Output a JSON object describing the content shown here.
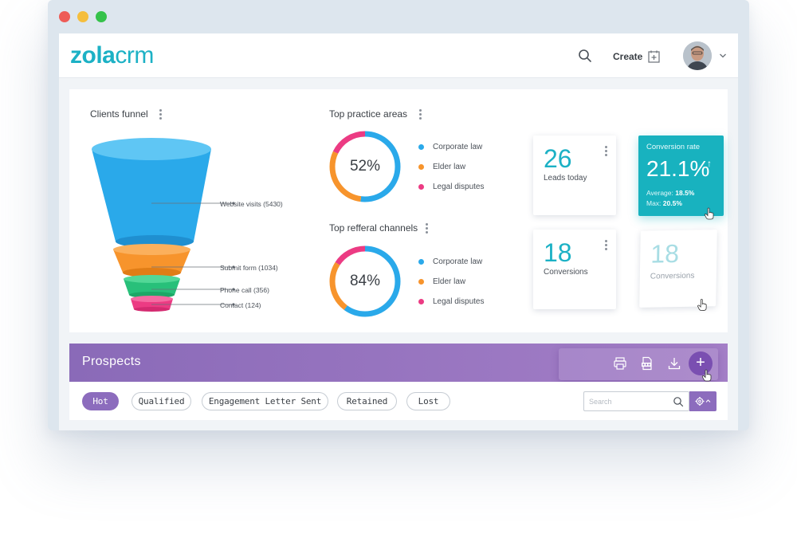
{
  "app": {
    "logo_bold": "zola",
    "logo_light": "crm",
    "create_label": "Create"
  },
  "funnel": {
    "title": "Clients funnel",
    "stages": [
      {
        "label": "Website visits (5430)",
        "value": 5430,
        "color": "#2aa9ea"
      },
      {
        "label": "Submit form (1034)",
        "value": 1034,
        "color": "#f7942c"
      },
      {
        "label": "Phone call (356)",
        "value": 356,
        "color": "#28c07a"
      },
      {
        "label": "Contact (124)",
        "value": 124,
        "color": "#ec3b83"
      }
    ]
  },
  "practice_areas": {
    "title": "Top practice areas",
    "percent_label": "52%",
    "segments": [
      {
        "label": "Corporate law",
        "color": "#2aa9ea",
        "fraction": 0.52
      },
      {
        "label": "Elder law",
        "color": "#f7942c",
        "fraction": 0.3
      },
      {
        "label": "Legal disputes",
        "color": "#ec3b83",
        "fraction": 0.18
      }
    ]
  },
  "referral_channels": {
    "title": "Top refferal channels",
    "percent_label": "84%",
    "segments": [
      {
        "label": "Corporate law",
        "color": "#2aa9ea",
        "fraction": 0.6
      },
      {
        "label": "Elder law",
        "color": "#f7942c",
        "fraction": 0.24
      },
      {
        "label": "Legal disputes",
        "color": "#ec3b83",
        "fraction": 0.16
      }
    ]
  },
  "cards": {
    "leads": {
      "value": "26",
      "label": "Leads today"
    },
    "conversions": {
      "value": "18",
      "label": "Conversions"
    },
    "conversions_ghost": {
      "value": "18",
      "label": "Conversions"
    },
    "rate": {
      "title": "Conversion rate",
      "value": "21.1%",
      "arrow": "↑",
      "average_label": "Average:",
      "average_value": "18.5%",
      "max_label": "Max:",
      "max_value": "20.5%"
    }
  },
  "prospects": {
    "title": "Prospects",
    "add_label": "+"
  },
  "filters": {
    "chips": [
      "Hot",
      "Qualified",
      "Engagement Letter Sent",
      "Retained",
      "Lost"
    ],
    "search_placeholder": "Search"
  },
  "colors": {
    "accent_teal": "#1cb1c5",
    "purple": "#8c6cbd"
  },
  "icons": {
    "search": "search-icon",
    "create": "create-icon",
    "chevron": "chevron-down-icon",
    "kebab": "more-vertical-icon",
    "print": "print-icon",
    "export": "export-file-icon",
    "download": "download-icon",
    "settings": "gear-icon",
    "pointer": "hand-cursor-icon"
  }
}
